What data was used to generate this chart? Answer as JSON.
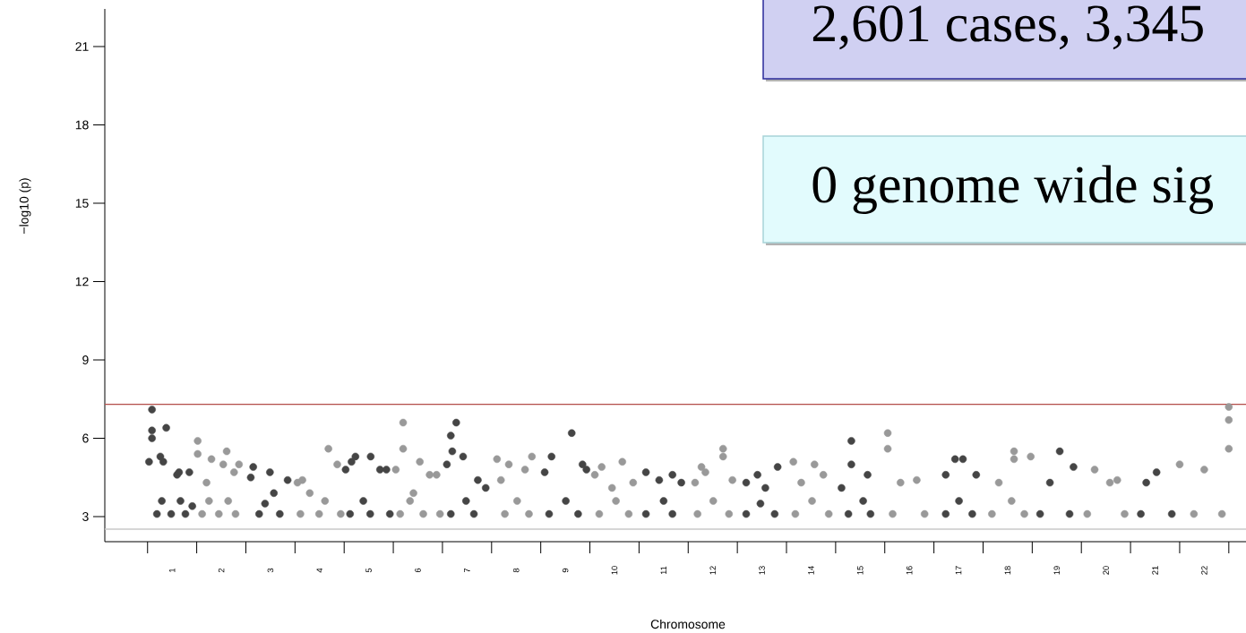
{
  "chart_data": {
    "type": "scatter",
    "xlabel": "Chromosome",
    "ylabel": "−log10 (p)",
    "annotations": [
      "2,601 cases, 3,345",
      "0 genome wide sig"
    ],
    "xlim": [
      -0.37,
      22.85
    ],
    "ylim": [
      2.04,
      22.44
    ],
    "yticks": [
      3,
      6,
      9,
      12,
      15,
      18,
      21
    ],
    "xticks": [
      {
        "value": 0.5,
        "label": null
      },
      1,
      {
        "value": 1.5,
        "label": null
      },
      2,
      {
        "value": 2.5,
        "label": null
      },
      3,
      {
        "value": 3.5,
        "label": null
      },
      4,
      {
        "value": 4.5,
        "label": null
      },
      5,
      {
        "value": 5.5,
        "label": null
      },
      6,
      {
        "value": 6.5,
        "label": null
      },
      7,
      {
        "value": 7.5,
        "label": null
      },
      8,
      {
        "value": 8.5,
        "label": null
      },
      9,
      {
        "value": 9.5,
        "label": null
      },
      10,
      {
        "value": 10.5,
        "label": null
      },
      11,
      {
        "value": 11.5,
        "label": null
      },
      12,
      {
        "value": 12.5,
        "label": null
      },
      13,
      {
        "value": 13.5,
        "label": null
      },
      14,
      {
        "value": 14.5,
        "label": null
      },
      15,
      {
        "value": 15.5,
        "label": null
      },
      16,
      {
        "value": 16.5,
        "label": null
      },
      17,
      {
        "value": 17.5,
        "label": null
      },
      18,
      {
        "value": 18.5,
        "label": null
      },
      19,
      {
        "value": 19.5,
        "label": null
      },
      20,
      {
        "value": 20.5,
        "label": null
      },
      21,
      {
        "value": 21.5,
        "label": null
      },
      22,
      {
        "value": 22.5,
        "label": null
      }
    ],
    "marker": "circle",
    "ref_lines": [
      {
        "axis": "y",
        "value": 7.3,
        "color": "#b5524e"
      },
      {
        "axis": "y",
        "value": 2.52,
        "color": "#c8c8c8"
      }
    ],
    "series": [
      {
        "color": "#454545",
        "x": [
          0.59,
          0.59,
          0.59,
          0.88,
          0.76,
          0.82,
          0.53,
          1.1,
          1.35,
          1.14,
          0.69,
          0.98,
          1.27,
          0.79,
          1.17,
          1.41,
          2.65,
          2.99,
          2.6,
          3.35,
          3.07,
          2.77,
          3.19,
          2.89,
          4.73,
          4.53,
          4.65,
          5.04,
          5.23,
          5.36,
          4.62,
          5.03,
          5.43,
          4.89,
          6.78,
          6.67,
          6.92,
          6.7,
          6.59,
          7.22,
          7.38,
          6.67,
          7.14,
          6.98,
          8.72,
          9.13,
          8.58,
          9.35,
          9.43,
          8.67,
          9.26,
          9.01,
          10.64,
          11.18,
          10.91,
          11.36,
          10.64,
          11.18,
          11.0,
          12.91,
          13.32,
          12.68,
          13.07,
          12.68,
          13.26,
          12.97,
          14.82,
          14.82,
          15.15,
          14.62,
          14.76,
          15.21,
          15.06,
          16.93,
          17.09,
          16.74,
          17.36,
          16.74,
          17.28,
          17.01,
          19.06,
          19.34,
          18.86,
          18.66,
          19.26,
          21.03,
          20.82,
          20.71,
          21.34
        ],
        "values": [
          7.1,
          6.3,
          6.0,
          6.4,
          5.3,
          5.1,
          5.1,
          4.6,
          4.7,
          4.7,
          3.1,
          3.1,
          3.1,
          3.6,
          3.6,
          3.4,
          4.9,
          4.7,
          4.5,
          4.4,
          3.9,
          3.1,
          3.1,
          3.5,
          5.3,
          4.8,
          5.1,
          5.3,
          4.8,
          4.8,
          3.1,
          3.1,
          3.1,
          3.6,
          6.6,
          6.1,
          5.3,
          5.5,
          5.0,
          4.4,
          4.1,
          3.1,
          3.1,
          3.6,
          5.3,
          6.2,
          4.7,
          5.0,
          4.8,
          3.1,
          3.1,
          3.6,
          4.7,
          4.6,
          4.4,
          4.3,
          3.1,
          3.1,
          3.6,
          4.6,
          4.9,
          4.3,
          4.1,
          3.1,
          3.1,
          3.5,
          5.9,
          5.0,
          4.6,
          4.1,
          3.1,
          3.1,
          3.6,
          5.2,
          5.2,
          4.6,
          4.6,
          3.1,
          3.1,
          3.6,
          5.5,
          4.9,
          4.3,
          3.1,
          3.1,
          4.7,
          4.3,
          3.1,
          3.1
        ]
      },
      {
        "color": "#999999",
        "x": [
          1.52,
          1.52,
          1.8,
          2.11,
          2.04,
          2.36,
          2.26,
          1.7,
          1.61,
          1.95,
          2.29,
          2.14,
          1.75,
          3.55,
          3.65,
          4.18,
          3.8,
          4.36,
          3.61,
          3.99,
          4.43,
          4.11,
          5.7,
          5.7,
          5.55,
          6.04,
          6.24,
          6.38,
          5.91,
          5.64,
          6.11,
          6.45,
          5.84,
          7.61,
          7.85,
          7.69,
          8.32,
          8.18,
          7.77,
          8.26,
          8.02,
          9.74,
          10.16,
          9.6,
          9.95,
          10.38,
          9.69,
          10.29,
          10.03,
          12.21,
          12.21,
          11.77,
          11.85,
          12.4,
          11.64,
          11.69,
          12.33,
          12.01,
          13.64,
          14.07,
          13.8,
          14.25,
          13.68,
          14.36,
          14.02,
          15.56,
          15.56,
          16.15,
          15.82,
          15.66,
          16.31,
          18.13,
          18.13,
          18.47,
          17.82,
          17.68,
          18.34,
          18.08,
          19.77,
          20.08,
          20.23,
          19.62,
          20.38,
          21.5,
          22.0,
          22.5,
          22.5,
          22.5,
          21.79,
          22.36
        ],
        "values": [
          5.9,
          5.4,
          5.2,
          5.5,
          5.0,
          5.0,
          4.7,
          4.3,
          3.1,
          3.1,
          3.1,
          3.6,
          3.6,
          4.3,
          4.4,
          5.6,
          3.9,
          5.0,
          3.1,
          3.1,
          3.1,
          3.6,
          6.6,
          5.6,
          4.8,
          5.1,
          4.6,
          4.6,
          3.9,
          3.1,
          3.1,
          3.1,
          3.6,
          5.2,
          5.0,
          4.4,
          5.3,
          4.8,
          3.1,
          3.1,
          3.6,
          4.9,
          5.1,
          4.6,
          4.1,
          4.3,
          3.1,
          3.1,
          3.6,
          5.6,
          5.3,
          4.9,
          4.7,
          4.4,
          4.3,
          3.1,
          3.1,
          3.6,
          5.1,
          5.0,
          4.3,
          4.6,
          3.1,
          3.1,
          3.6,
          6.2,
          5.6,
          4.4,
          4.3,
          3.1,
          3.1,
          5.5,
          5.2,
          5.3,
          4.3,
          3.1,
          3.1,
          3.6,
          4.8,
          4.3,
          4.4,
          3.1,
          3.1,
          5.0,
          4.8,
          7.2,
          6.7,
          5.6,
          3.1,
          3.1
        ]
      }
    ]
  }
}
